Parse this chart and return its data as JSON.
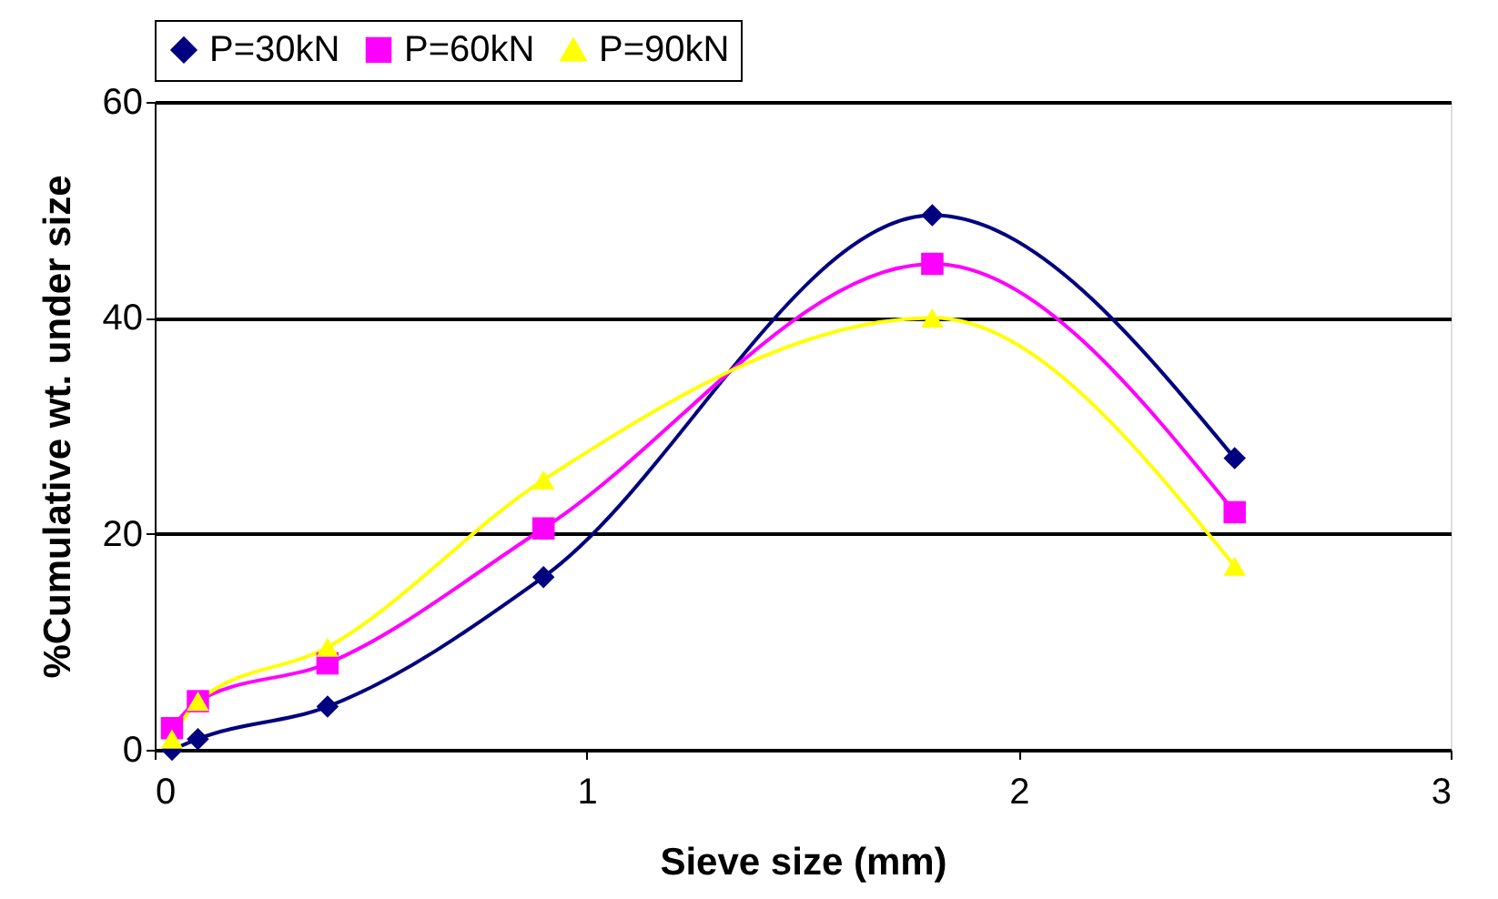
{
  "chart_data": {
    "type": "line",
    "xlabel": "Sieve size (mm)",
    "ylabel": "%Cumulative wt. under size",
    "xlim": [
      0,
      3
    ],
    "xticks": [
      0,
      1,
      2,
      3
    ],
    "ylim": [
      0,
      60
    ],
    "yticks": [
      0,
      20,
      40,
      60
    ],
    "grid": "y",
    "legend": "top",
    "line_style": "solid",
    "series": [
      {
        "name": "P=30kN",
        "color": "#000080",
        "marker": "diamond",
        "x": [
          0.04,
          0.1,
          0.4,
          0.9,
          1.8,
          2.5
        ],
        "values": [
          0,
          1,
          4,
          16,
          49.5,
          27
        ]
      },
      {
        "name": "P=60kN",
        "color": "#ff00ff",
        "marker": "square",
        "x": [
          0.04,
          0.1,
          0.4,
          0.9,
          1.8,
          2.5
        ],
        "values": [
          2,
          4.5,
          8,
          20.5,
          45,
          22
        ]
      },
      {
        "name": "P=90kN",
        "color": "#ffff00",
        "marker": "triangle",
        "x": [
          0.04,
          0.1,
          0.4,
          0.9,
          1.8,
          2.5
        ],
        "values": [
          1,
          4.5,
          9.5,
          25,
          40,
          17
        ]
      }
    ]
  }
}
